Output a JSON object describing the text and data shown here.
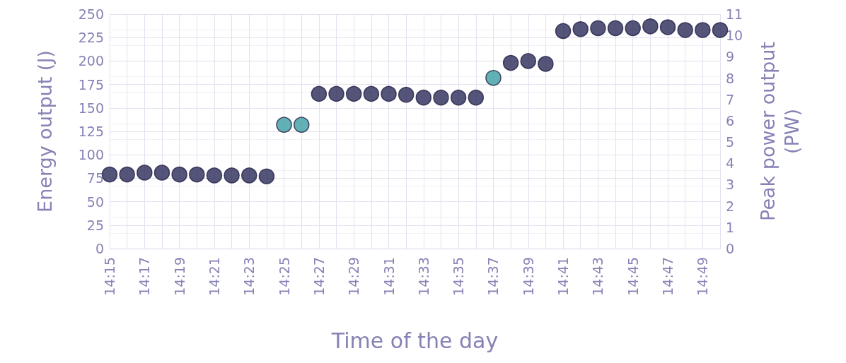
{
  "chart_data": {
    "type": "scatter",
    "xlabel": "Time of the day",
    "ylabel": "Energy output (J)",
    "y2label": "Peak power output\n(PW)",
    "categories": [
      "14:15",
      null,
      "14:17",
      null,
      "14:19",
      null,
      "14:21",
      null,
      "14:23",
      null,
      "14:25",
      null,
      "14:27",
      null,
      "14:29",
      null,
      "14:31",
      null,
      "14:33",
      null,
      "14:35",
      null,
      "14:37",
      null,
      "14:39",
      null,
      "14:41",
      null,
      "14:43",
      null,
      "14:45",
      null,
      "14:47",
      null,
      "14:49",
      null
    ],
    "values": [
      79,
      79,
      81,
      81,
      79,
      79,
      78,
      78,
      78,
      77,
      132,
      132,
      165,
      165,
      165,
      165,
      165,
      164,
      161,
      161,
      161,
      161,
      182,
      198,
      200,
      197,
      232,
      234,
      235,
      235,
      235,
      237,
      236,
      233,
      233,
      233
    ],
    "colors": [
      "#2b2958",
      "#2b2958",
      "#2b2958",
      "#2b2958",
      "#2b2958",
      "#2b2958",
      "#2b2958",
      "#2b2958",
      "#2b2958",
      "#2b2958",
      "#3a9ea3",
      "#3a9ea3",
      "#2b2958",
      "#2b2958",
      "#2b2958",
      "#2b2958",
      "#2b2958",
      "#2b2958",
      "#2b2958",
      "#2b2958",
      "#2b2958",
      "#2b2958",
      "#3a9ea3",
      "#2b2958",
      "#2b2958",
      "#2b2958",
      "#2b2958",
      "#2b2958",
      "#2b2958",
      "#2b2958",
      "#2b2958",
      "#2b2958",
      "#2b2958",
      "#2b2958",
      "#2b2958",
      "#2b2958"
    ],
    "ylim": [
      0,
      250
    ],
    "yticks": [
      0,
      25,
      50,
      75,
      100,
      125,
      150,
      175,
      200,
      225,
      250
    ],
    "y2lim": [
      0,
      11
    ],
    "y2ticks": [
      0,
      1,
      2,
      3,
      4,
      5,
      6,
      7,
      8,
      9,
      10,
      11
    ],
    "grid": true,
    "marker": "circle"
  }
}
